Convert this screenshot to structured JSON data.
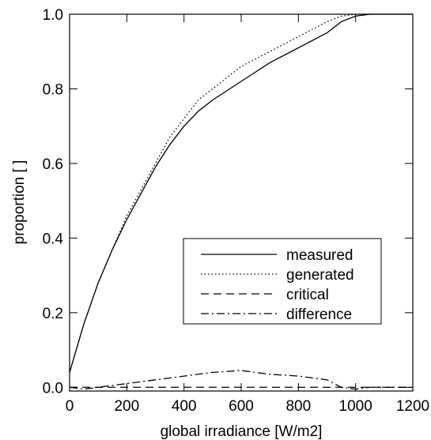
{
  "chart_data": {
    "type": "line",
    "x_label": "global irradiance [W/m2]",
    "y_label": "proportion [ ]",
    "x": [
      0,
      50,
      100,
      150,
      200,
      250,
      300,
      350,
      400,
      450,
      500,
      600,
      700,
      800,
      900,
      950,
      1000,
      1050,
      1200
    ],
    "series": [
      {
        "name": "measured",
        "color": "#000000",
        "dash": "solid",
        "values": [
          0.04,
          0.17,
          0.28,
          0.37,
          0.45,
          0.52,
          0.59,
          0.65,
          0.7,
          0.74,
          0.77,
          0.82,
          0.87,
          0.91,
          0.95,
          0.98,
          0.995,
          1.0,
          1.0
        ]
      },
      {
        "name": "generated",
        "color": "#000000",
        "dash": "dotted",
        "values": [
          0.04,
          0.17,
          0.28,
          0.37,
          0.46,
          0.53,
          0.6,
          0.67,
          0.72,
          0.77,
          0.8,
          0.86,
          0.9,
          0.94,
          0.98,
          0.995,
          1.0,
          1.0,
          1.0
        ]
      },
      {
        "name": "critical",
        "color": "#000000",
        "dash": "dashed",
        "values": [
          0,
          0,
          0,
          0,
          0,
          0,
          0,
          0,
          0,
          0,
          0,
          0,
          0,
          0,
          0,
          0,
          0,
          0,
          0
        ]
      },
      {
        "name": "difference",
        "color": "#000000",
        "dash": "dashdot",
        "values": [
          0,
          -0.005,
          0,
          0.005,
          0.01,
          0.015,
          0.02,
          0.025,
          0.03,
          0.035,
          0.04,
          0.045,
          0.035,
          0.03,
          0.02,
          0,
          -0.005,
          0,
          0
        ]
      }
    ],
    "xlim": [
      0,
      1200
    ],
    "ylim": [
      -0.01,
      1.0
    ],
    "xticks": [
      0,
      200,
      400,
      600,
      800,
      1000,
      1200
    ],
    "yticks": [
      {
        "value": 0,
        "label": "0.0"
      },
      0.2,
      0.4,
      0.6,
      0.8,
      {
        "value": 1,
        "label": "1.0"
      }
    ],
    "legend": "lower right"
  }
}
